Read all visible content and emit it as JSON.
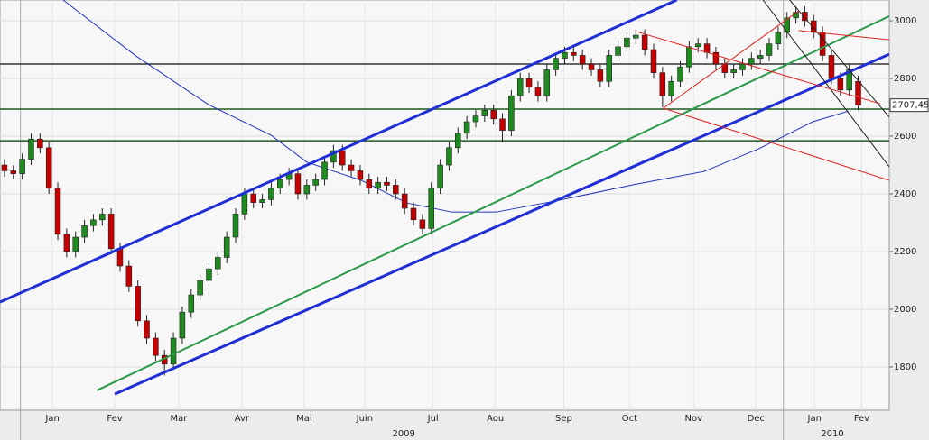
{
  "chart_data": {
    "type": "candlestick",
    "xlim": [
      0,
      100
    ],
    "ylim": [
      1650,
      3072
    ],
    "yticks": [
      1800,
      2000,
      2200,
      2400,
      2600,
      2800,
      3000
    ],
    "grid": true,
    "xticks": [
      {
        "value": 5.9,
        "label": "Jan"
      },
      {
        "value": 12.9,
        "label": "Fev"
      },
      {
        "value": 20.1,
        "label": "Mar"
      },
      {
        "value": 27.2,
        "label": "Avr"
      },
      {
        "value": 34.2,
        "label": "Mai"
      },
      {
        "value": 41.0,
        "label": "Juin"
      },
      {
        "value": 48.7,
        "label": "Jul"
      },
      {
        "value": 55.7,
        "label": "Aou"
      },
      {
        "value": 63.4,
        "label": "Sep"
      },
      {
        "value": 70.8,
        "label": "Oct"
      },
      {
        "value": 78.0,
        "label": "Nov"
      },
      {
        "value": 85.0,
        "label": "Dec"
      },
      {
        "value": 91.6,
        "label": "Jan"
      },
      {
        "value": 96.9,
        "label": "Fev"
      }
    ],
    "years": [
      {
        "value": 45.4,
        "label": "2009"
      },
      {
        "value": 93.6,
        "label": "2010"
      }
    ],
    "year_separators": [
      2.3,
      88.1
    ],
    "up_color": "#1f8a1f",
    "down_color": "#c40000",
    "open": [
      2500,
      2480,
      2470,
      2520,
      2590,
      2560,
      2420,
      2260,
      2200,
      2250,
      2290,
      2310,
      2330,
      2210,
      2150,
      2080,
      1960,
      1900,
      1840,
      1810,
      1900,
      1990,
      2050,
      2100,
      2140,
      2180,
      2250,
      2330,
      2400,
      2370,
      2380,
      2420,
      2450,
      2470,
      2400,
      2430,
      2450,
      2510,
      2550,
      2500,
      2480,
      2450,
      2420,
      2440,
      2430,
      2400,
      2350,
      2310,
      2280,
      2420,
      2500,
      2560,
      2610,
      2650,
      2670,
      2690,
      2660,
      2620,
      2740,
      2800,
      2770,
      2740,
      2830,
      2870,
      2890,
      2880,
      2850,
      2830,
      2790,
      2880,
      2910,
      2940,
      2950,
      2900,
      2820,
      2740,
      2790,
      2840,
      2910,
      2920,
      2890,
      2850,
      2820,
      2830,
      2850,
      2870,
      2880,
      2920,
      2960,
      3010,
      3030,
      3000,
      2960,
      2880,
      2800,
      2760,
      2790
    ],
    "high": [
      2520,
      2500,
      2540,
      2610,
      2610,
      2580,
      2440,
      2280,
      2270,
      2310,
      2330,
      2350,
      2350,
      2230,
      2170,
      2100,
      1980,
      1920,
      1860,
      1920,
      2010,
      2070,
      2120,
      2160,
      2200,
      2270,
      2350,
      2420,
      2420,
      2400,
      2440,
      2470,
      2490,
      2490,
      2450,
      2470,
      2530,
      2570,
      2570,
      2520,
      2500,
      2470,
      2460,
      2460,
      2450,
      2420,
      2370,
      2330,
      2440,
      2520,
      2580,
      2630,
      2670,
      2690,
      2710,
      2710,
      2680,
      2760,
      2820,
      2820,
      2790,
      2850,
      2890,
      2910,
      2910,
      2900,
      2870,
      2850,
      2900,
      2930,
      2960,
      2970,
      2970,
      2920,
      2840,
      2810,
      2860,
      2930,
      2940,
      2940,
      2910,
      2870,
      2850,
      2870,
      2890,
      2900,
      2940,
      2980,
      3030,
      3050,
      3050,
      3020,
      2980,
      2900,
      2820,
      2850,
      2810
    ],
    "low": [
      2460,
      2450,
      2450,
      2500,
      2540,
      2400,
      2240,
      2180,
      2180,
      2230,
      2270,
      2290,
      2190,
      2130,
      2060,
      1940,
      1880,
      1820,
      1770,
      1790,
      1880,
      1970,
      2030,
      2080,
      2120,
      2160,
      2230,
      2310,
      2350,
      2350,
      2360,
      2400,
      2430,
      2380,
      2380,
      2410,
      2430,
      2490,
      2480,
      2460,
      2430,
      2400,
      2400,
      2410,
      2380,
      2330,
      2290,
      2260,
      2260,
      2400,
      2480,
      2540,
      2590,
      2630,
      2650,
      2640,
      2580,
      2600,
      2720,
      2750,
      2720,
      2720,
      2810,
      2850,
      2860,
      2830,
      2810,
      2770,
      2770,
      2860,
      2890,
      2920,
      2880,
      2800,
      2700,
      2720,
      2770,
      2820,
      2890,
      2870,
      2830,
      2800,
      2800,
      2810,
      2830,
      2850,
      2860,
      2900,
      2940,
      2990,
      2980,
      2940,
      2860,
      2780,
      2740,
      2740,
      2690
    ],
    "close": [
      2480,
      2470,
      2520,
      2590,
      2560,
      2420,
      2260,
      2200,
      2250,
      2290,
      2310,
      2330,
      2210,
      2150,
      2080,
      1960,
      1900,
      1840,
      1810,
      1900,
      1990,
      2050,
      2100,
      2140,
      2180,
      2250,
      2330,
      2400,
      2370,
      2380,
      2420,
      2450,
      2470,
      2400,
      2430,
      2450,
      2510,
      2550,
      2500,
      2480,
      2450,
      2420,
      2440,
      2430,
      2400,
      2350,
      2310,
      2280,
      2420,
      2500,
      2560,
      2610,
      2650,
      2670,
      2690,
      2660,
      2620,
      2740,
      2800,
      2770,
      2740,
      2830,
      2870,
      2890,
      2880,
      2850,
      2830,
      2790,
      2880,
      2910,
      2940,
      2950,
      2900,
      2820,
      2740,
      2790,
      2840,
      2910,
      2920,
      2890,
      2850,
      2820,
      2830,
      2850,
      2870,
      2880,
      2920,
      2960,
      3010,
      3030,
      3000,
      2960,
      2880,
      2800,
      2760,
      2830,
      2707.45
    ],
    "ma": {
      "color": "#2233bb",
      "x": [
        7.1,
        15.2,
        23.4,
        30.5,
        34.5,
        40.6,
        45.7,
        50.8,
        55.8,
        62.9,
        71.1,
        79.2,
        85.3,
        91.4,
        95.4
      ],
      "y": [
        3072,
        2880,
        2710,
        2603,
        2510,
        2447,
        2369,
        2337,
        2337,
        2378,
        2431,
        2478,
        2556,
        2650,
        2687
      ]
    },
    "levels": [
      {
        "value": 2850,
        "color": "#333333"
      },
      {
        "value": 2694,
        "color": "#1e5a1e"
      },
      {
        "value": 2584,
        "color": "#1e5a1e"
      }
    ],
    "trendlines": [
      {
        "color": "#1f2fd6",
        "width": 3,
        "x": [
          0,
          76.1
        ],
        "y": [
          2025,
          3072
        ]
      },
      {
        "color": "#1f2fd6",
        "width": 3,
        "x": [
          12.9,
          100
        ],
        "y": [
          1706,
          2884
        ]
      },
      {
        "color": "#2a9a4a",
        "width": 2,
        "x": [
          10.9,
          100
        ],
        "y": [
          1719,
          3016
        ]
      },
      {
        "color": "#222222",
        "width": 1,
        "x": [
          85.8,
          100
        ],
        "y": [
          3072,
          2494
        ]
      },
      {
        "color": "#222222",
        "width": 1,
        "x": [
          88.8,
          100
        ],
        "y": [
          3072,
          2666
        ]
      },
      {
        "color": "#dd2222",
        "width": 1,
        "x": [
          89.8,
          100
        ],
        "y": [
          2966,
          2934
        ]
      },
      {
        "color": "#dd2222",
        "width": 1,
        "x": [
          74.6,
          100
        ],
        "y": [
          2697,
          2447
        ]
      },
      {
        "color": "#dd2222",
        "width": 1,
        "x": [
          71.6,
          99
        ],
        "y": [
          2962,
          2712
        ]
      },
      {
        "color": "#dd2222",
        "width": 1,
        "x": [
          74.6,
          89.8
        ],
        "y": [
          2697,
          3034
        ]
      }
    ],
    "last": {
      "value": 2707.45,
      "label": "2707,45"
    }
  }
}
